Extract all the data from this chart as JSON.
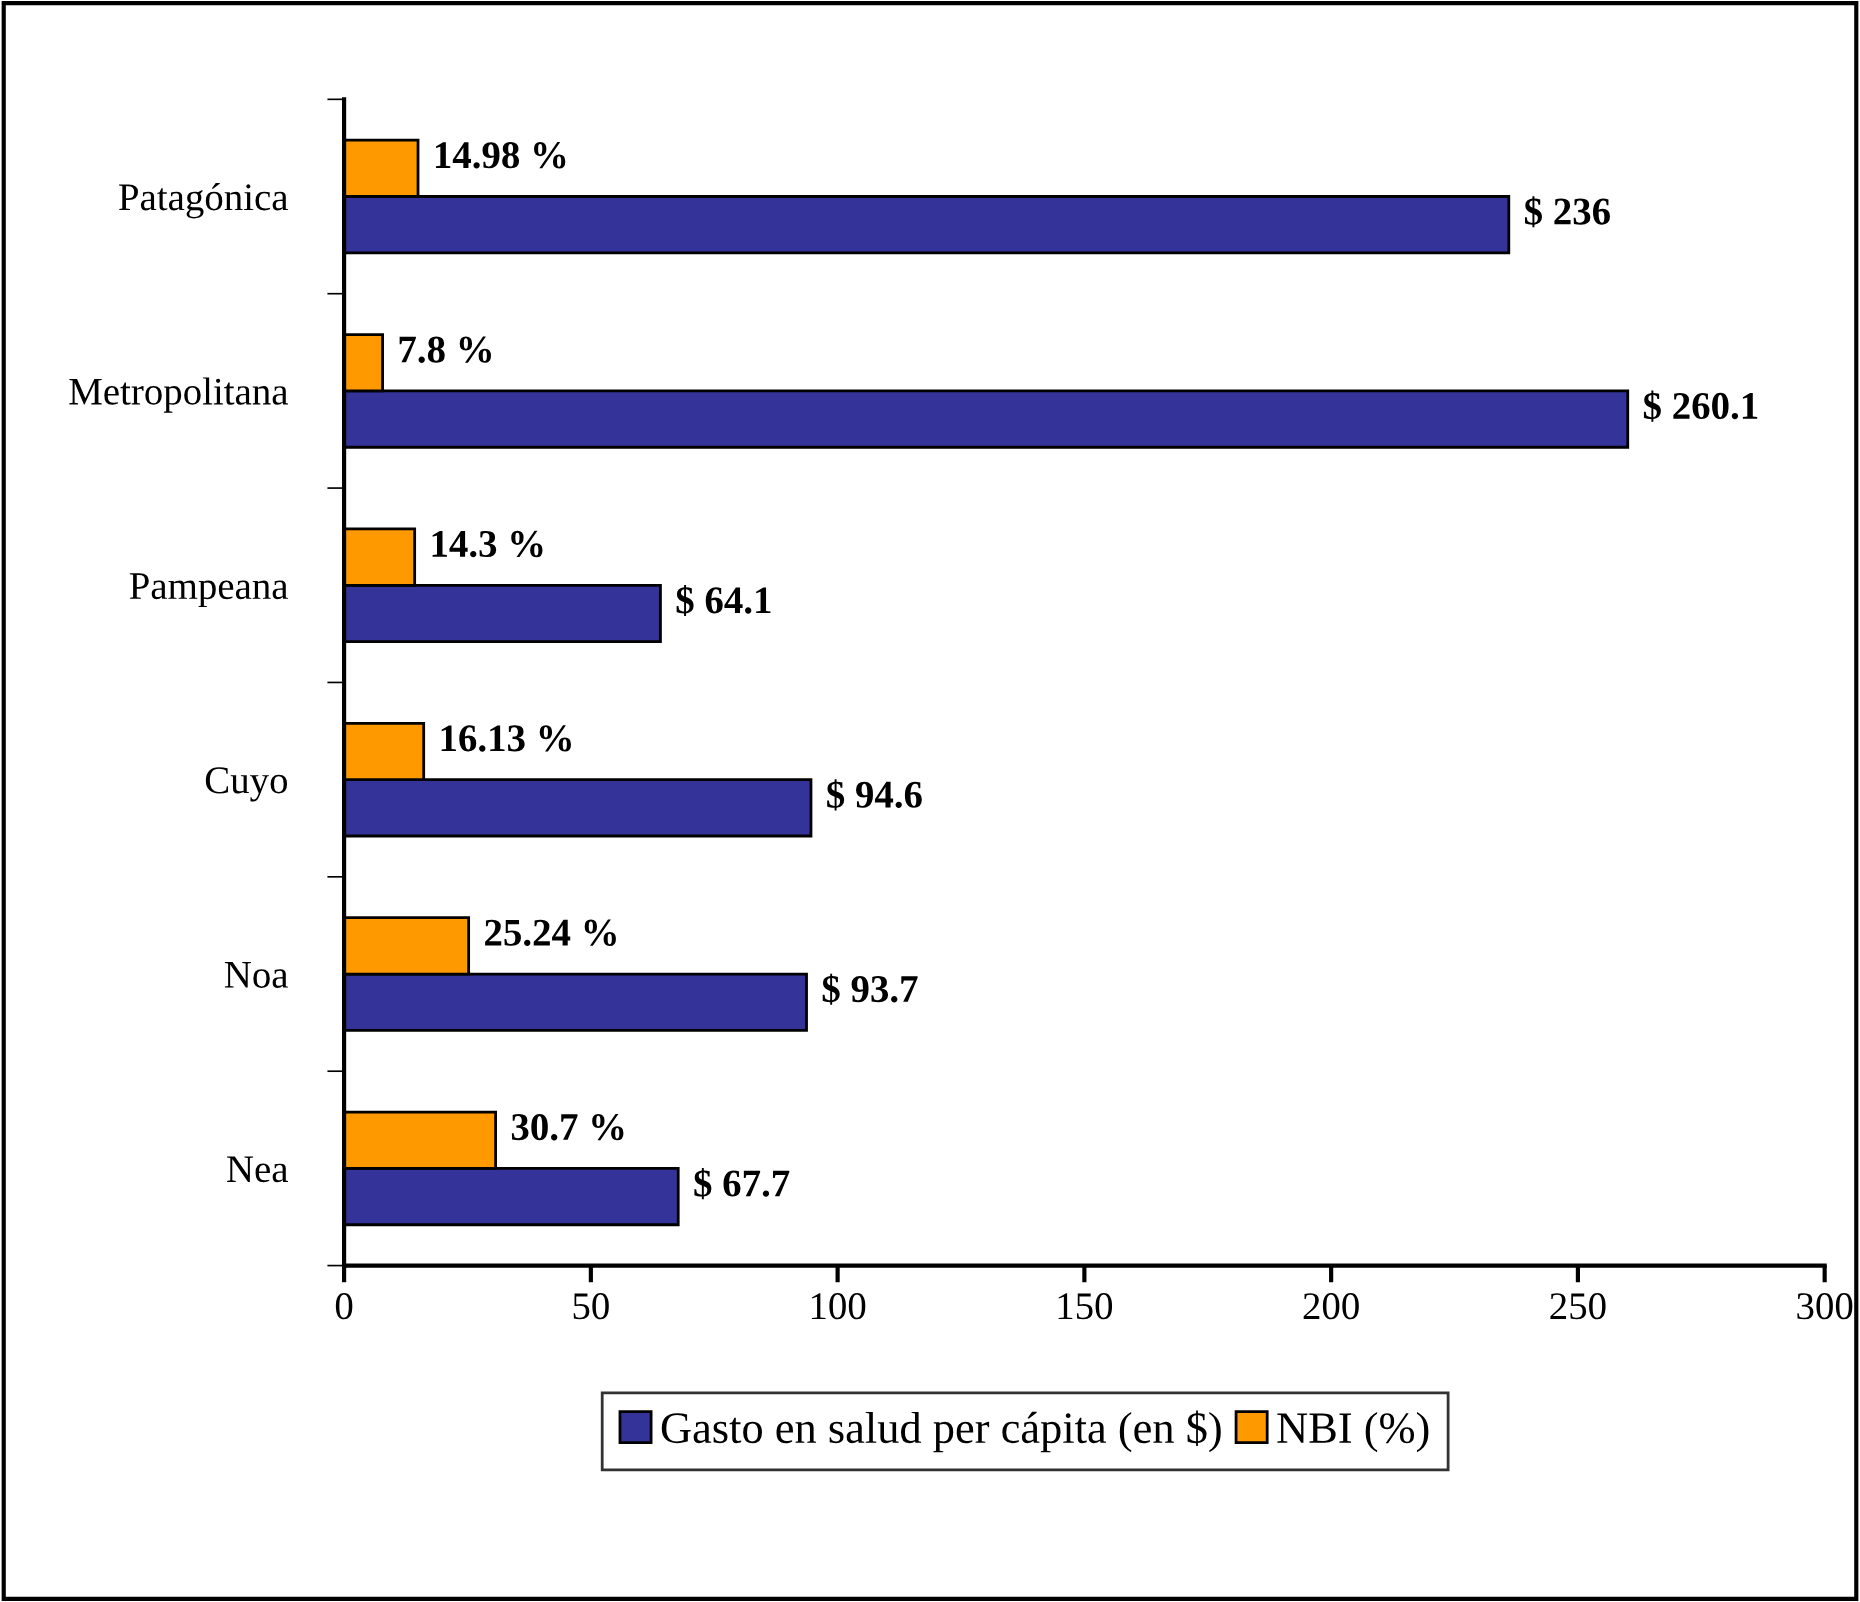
{
  "chart_data": {
    "type": "bar",
    "orientation": "horizontal",
    "categories": [
      "Patagónica",
      "Metropolitana",
      "Pampeana",
      "Cuyo",
      "Noa",
      "Nea"
    ],
    "series": [
      {
        "name": "Gasto en salud per cápita (en $)",
        "color": "#333399",
        "values": [
          236,
          260.1,
          64.1,
          94.6,
          93.7,
          67.7
        ],
        "value_labels": [
          "$ 236",
          "$ 260.1",
          "$ 64.1",
          "$ 94.6",
          "$ 93.7",
          "$ 67.7"
        ]
      },
      {
        "name": "NBI (%)",
        "color": "#ff9900",
        "values": [
          14.98,
          7.8,
          14.3,
          16.13,
          25.24,
          30.7
        ],
        "value_labels": [
          "14.98 %",
          "7.8 %",
          "14.3 %",
          "16.13 %",
          "25.24 %",
          "30.7 %"
        ]
      }
    ],
    "xlim": [
      0,
      300
    ],
    "xticks": [
      0,
      50,
      100,
      150,
      200,
      250,
      300
    ],
    "grid": false,
    "legend": "bottom"
  }
}
